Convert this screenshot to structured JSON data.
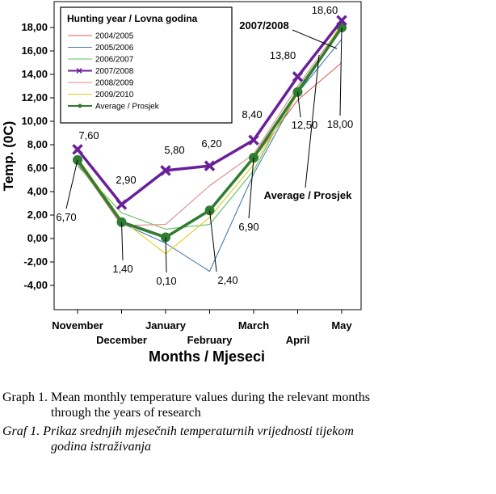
{
  "chart_data": {
    "type": "line",
    "title": "",
    "xlabel": "Months / Mjeseci",
    "ylabel": "Temp. (0C)",
    "categories": [
      "November",
      "December",
      "January",
      "February",
      "March",
      "April",
      "May"
    ],
    "ylim": [
      -6,
      19
    ],
    "yticks": [
      -4,
      -2,
      0,
      2,
      4,
      6,
      8,
      10,
      12,
      14,
      16,
      18
    ],
    "ytick_labels": [
      "-4,00",
      "-2,00",
      "0,00",
      "2,00",
      "4,00",
      "6,00",
      "8,00",
      "10,00",
      "12,00",
      "14,00",
      "16,00",
      "18,00"
    ],
    "legend": {
      "title": "Hunting year / Lovna godina",
      "position": "top-left"
    },
    "series": [
      {
        "name": "2004/2005",
        "color": "#e06060",
        "values": [
          6.8,
          1.5,
          0.2,
          2.3,
          6.8,
          11.8,
          15.0
        ]
      },
      {
        "name": "2005/2006",
        "color": "#4a7ab0",
        "values": [
          6.4,
          1.3,
          -0.4,
          -2.8,
          5.5,
          12.4,
          17.0
        ]
      },
      {
        "name": "2006/2007",
        "color": "#60c060",
        "values": [
          6.2,
          2.2,
          0.8,
          1.2,
          5.8,
          12.8,
          18.0
        ]
      },
      {
        "name": "2007/2008",
        "color": "#6a1f9a",
        "values": [
          7.6,
          2.9,
          5.8,
          6.2,
          8.4,
          13.8,
          18.6
        ]
      },
      {
        "name": "2008/2009",
        "color": "#e08a8a",
        "values": [
          6.5,
          1.1,
          1.2,
          4.5,
          7.2,
          13.0,
          18.2
        ]
      },
      {
        "name": "2009/2010",
        "color": "#e0d020",
        "values": [
          6.9,
          1.6,
          -1.3,
          1.8,
          6.3,
          12.3,
          18.4
        ]
      },
      {
        "name": "Average / Prosjek",
        "color": "#2e7d32",
        "values": [
          6.7,
          1.4,
          0.1,
          2.4,
          6.9,
          12.5,
          18.0
        ]
      }
    ],
    "annotations": {
      "purple_labels": [
        "7,60",
        "2,90",
        "5,80",
        "6,20",
        "8,40",
        "13,80",
        "18,60"
      ],
      "average_labels": [
        "6,70",
        "1,40",
        "0,10",
        "2,40",
        "6,90",
        "12,50",
        "18,00"
      ],
      "series_callouts": [
        "2007/2008",
        "Average / Prosjek"
      ]
    },
    "grid": false
  },
  "caption": {
    "en_line1": "Graph 1. Mean monthly temperature values during the relevant months",
    "en_line2": "through the years of research",
    "hr_line1": "Graf 1. Prikaz srednjih mjesečnih temperaturnih vrijednosti tijekom",
    "hr_line2": "godina istraživanja"
  }
}
